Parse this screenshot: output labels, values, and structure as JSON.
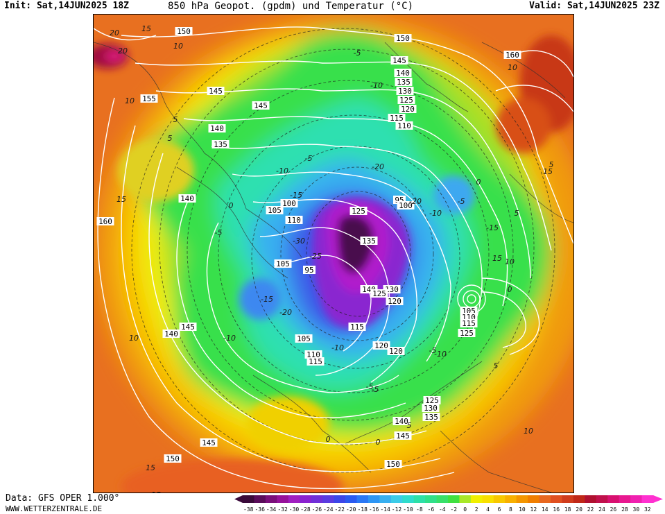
{
  "header": {
    "init": "Init: Sat,14JUN2025 18Z",
    "title": "850 hPa Geopot. (gpdm) und Temperatur (°C)",
    "valid": "Valid: Sat,14JUN2025 23Z"
  },
  "footer": {
    "data_source": "Data: GFS OPER 1.000°",
    "website": "WWW.WETTERZENTRALE.DE"
  },
  "legend": {
    "ticks": [
      "-38",
      "-36",
      "-34",
      "-32",
      "-30",
      "-28",
      "-26",
      "-24",
      "-22",
      "-20",
      "-18",
      "-16",
      "-14",
      "-12",
      "-10",
      "-8",
      "-6",
      "-4",
      "-2",
      "0",
      "2",
      "4",
      "6",
      "8",
      "10",
      "12",
      "14",
      "16",
      "18",
      "20",
      "22",
      "24",
      "26",
      "28",
      "30",
      "32"
    ],
    "colors": [
      "#3a0a3a",
      "#5a0c5a",
      "#7a0f7a",
      "#96129a",
      "#a01fc0",
      "#8a22d0",
      "#7030d8",
      "#5a3ce0",
      "#3c46e8",
      "#2a5af0",
      "#2a78f5",
      "#2e96f5",
      "#38b0f0",
      "#3ccce8",
      "#30dccc",
      "#2ee0a8",
      "#30e08a",
      "#38e06a",
      "#40e040",
      "#a8e828",
      "#f0f000",
      "#f8e000",
      "#f8c800",
      "#f8b000",
      "#f49600",
      "#f07e00",
      "#e86820",
      "#e05020",
      "#d03c1c",
      "#c02818",
      "#b01030",
      "#c0104c",
      "#d81070",
      "#e81890",
      "#f020b0",
      "#ff30d0"
    ]
  },
  "map": {
    "contour_labels_geopotential": [
      {
        "text": "150"
      },
      {
        "text": "150"
      },
      {
        "text": "145"
      },
      {
        "text": "140"
      },
      {
        "text": "135"
      },
      {
        "text": "130"
      },
      {
        "text": "125"
      },
      {
        "text": "120"
      },
      {
        "text": "115"
      },
      {
        "text": "110"
      },
      {
        "text": "155"
      },
      {
        "text": "145"
      },
      {
        "text": "145"
      },
      {
        "text": "140"
      },
      {
        "text": "135"
      },
      {
        "text": "140"
      },
      {
        "text": "160"
      },
      {
        "text": "160"
      },
      {
        "text": "105"
      },
      {
        "text": "100"
      },
      {
        "text": "95"
      },
      {
        "text": "100"
      },
      {
        "text": "110"
      },
      {
        "text": "105"
      },
      {
        "text": "95"
      },
      {
        "text": "125"
      },
      {
        "text": "135"
      },
      {
        "text": "140"
      },
      {
        "text": "130"
      },
      {
        "text": "125"
      },
      {
        "text": "120"
      },
      {
        "text": "115"
      },
      {
        "text": "105"
      },
      {
        "text": "110"
      },
      {
        "text": "115"
      },
      {
        "text": "125"
      },
      {
        "text": "145"
      },
      {
        "text": "140"
      },
      {
        "text": "105"
      },
      {
        "text": "110"
      },
      {
        "text": "115"
      },
      {
        "text": "120"
      },
      {
        "text": "120"
      },
      {
        "text": "125"
      },
      {
        "text": "130"
      },
      {
        "text": "135"
      },
      {
        "text": "140"
      },
      {
        "text": "145"
      },
      {
        "text": "145"
      },
      {
        "text": "150"
      },
      {
        "text": "150"
      }
    ],
    "contour_labels_temperature": [
      {
        "text": "15"
      },
      {
        "text": "10"
      },
      {
        "text": "20"
      },
      {
        "text": "10"
      },
      {
        "text": "5"
      },
      {
        "text": "5"
      },
      {
        "text": "-5"
      },
      {
        "text": "-10"
      },
      {
        "text": "0"
      },
      {
        "text": "-5"
      },
      {
        "text": "-10"
      },
      {
        "text": "-15"
      },
      {
        "text": "-20"
      },
      {
        "text": "-25"
      },
      {
        "text": "-20"
      },
      {
        "text": "-30"
      },
      {
        "text": "-5"
      },
      {
        "text": "-10"
      },
      {
        "text": "-15"
      },
      {
        "text": "-20"
      },
      {
        "text": "-10"
      },
      {
        "text": "-5"
      },
      {
        "text": "0"
      },
      {
        "text": "0"
      },
      {
        "text": "5"
      },
      {
        "text": "10"
      },
      {
        "text": "15"
      },
      {
        "text": "15"
      },
      {
        "text": "10"
      },
      {
        "text": "5"
      },
      {
        "text": "-5"
      },
      {
        "text": "-10"
      },
      {
        "text": "-15"
      },
      {
        "text": "0"
      },
      {
        "text": "5"
      },
      {
        "text": "-5"
      },
      {
        "text": "-10"
      },
      {
        "text": "-5"
      },
      {
        "text": "0"
      },
      {
        "text": "5"
      },
      {
        "text": "10"
      },
      {
        "text": "15"
      },
      {
        "text": "15"
      },
      {
        "text": "10"
      },
      {
        "text": "15"
      },
      {
        "text": "20"
      }
    ]
  }
}
